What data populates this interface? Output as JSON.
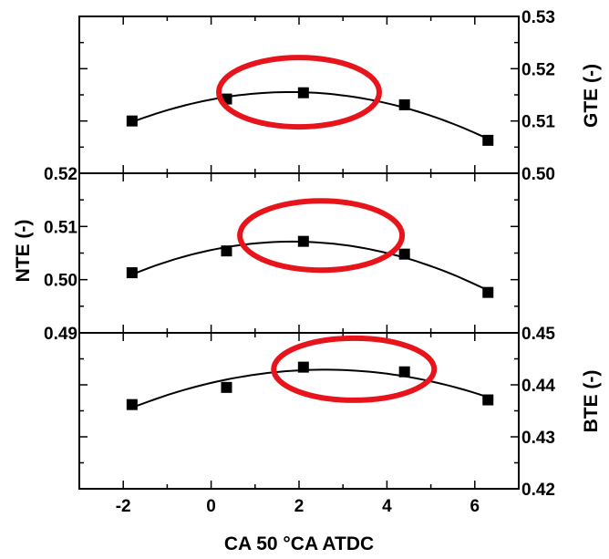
{
  "chart_data": [
    {
      "type": "scatter",
      "ylabel": "GTE (-)",
      "y_axis_side": "right",
      "xlim": [
        -3,
        7
      ],
      "ylim": [
        0.5,
        0.53
      ],
      "y_ticks": [
        "0.50",
        "0.51",
        "0.52",
        "0.53"
      ],
      "series": [
        {
          "x": [
            -1.8,
            0.35,
            2.1,
            4.4,
            6.3
          ],
          "y": [
            0.51,
            0.5142,
            0.5154,
            0.5131,
            0.5063
          ],
          "marker": "square"
        }
      ],
      "fit_curve": {
        "type": "quadratic",
        "color": "#000000"
      },
      "highlight_ellipse": {
        "color": "#e8141c",
        "center_x": 2.0,
        "center_y": 0.5155
      }
    },
    {
      "type": "scatter",
      "ylabel": "NTE (-)",
      "y_axis_side": "left",
      "xlim": [
        -3,
        7
      ],
      "ylim": [
        0.49,
        0.52
      ],
      "y_ticks": [
        "0.49",
        "0.50",
        "0.51",
        "0.52"
      ],
      "series": [
        {
          "x": [
            -1.8,
            0.35,
            2.1,
            4.4,
            6.3
          ],
          "y": [
            0.5013,
            0.5054,
            0.5072,
            0.5048,
            0.4976
          ],
          "marker": "square"
        }
      ],
      "fit_curve": {
        "type": "quadratic",
        "color": "#000000"
      },
      "highlight_ellipse": {
        "color": "#e8141c",
        "center_x": 2.5,
        "center_y": 0.5083
      }
    },
    {
      "type": "scatter",
      "ylabel": "BTE (-)",
      "y_axis_side": "right",
      "xlabel": "CA 50 °CA ATDC",
      "xlim": [
        -3,
        7
      ],
      "ylim": [
        0.42,
        0.45
      ],
      "x_ticks": [
        "-2",
        "0",
        "2",
        "4",
        "6"
      ],
      "y_ticks": [
        "0.42",
        "0.43",
        "0.44",
        "0.45"
      ],
      "series": [
        {
          "x": [
            -1.8,
            0.35,
            2.1,
            4.4,
            6.3
          ],
          "y": [
            0.4362,
            0.4395,
            0.4434,
            0.4425,
            0.4371
          ],
          "marker": "square"
        }
      ],
      "fit_curve": {
        "type": "quadratic",
        "color": "#000000"
      },
      "highlight_ellipse": {
        "color": "#e8141c",
        "center_x": 3.25,
        "center_y": 0.443
      }
    }
  ]
}
